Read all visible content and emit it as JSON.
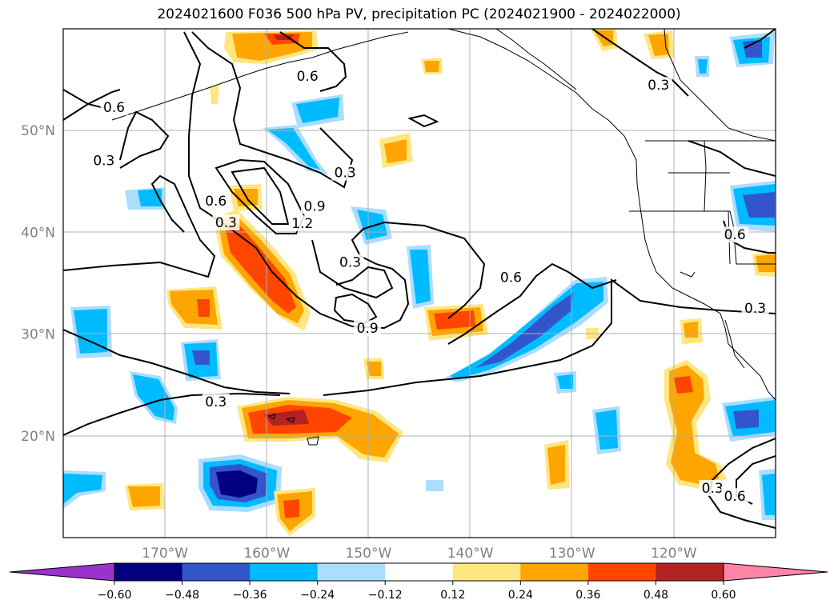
{
  "title": "2024021600 F036 500 hPa PV, precipitation PC (2024021900 - 2024022000)",
  "map": {
    "projection": "PlateCarree",
    "lon_range": [
      -180,
      -110
    ],
    "lat_range": [
      10,
      60
    ],
    "grid": true,
    "lon_ticks": [
      {
        "lon": -170,
        "label": "170°W"
      },
      {
        "lon": -160,
        "label": "160°W"
      },
      {
        "lon": -150,
        "label": "150°W"
      },
      {
        "lon": -140,
        "label": "140°W"
      },
      {
        "lon": -130,
        "label": "130°W"
      },
      {
        "lon": -120,
        "label": "120°W"
      }
    ],
    "lat_ticks": [
      {
        "lat": 20,
        "label": "20°N"
      },
      {
        "lat": 30,
        "label": "30°N"
      },
      {
        "lat": 40,
        "label": "40°N"
      },
      {
        "lat": 50,
        "label": "50°N"
      }
    ]
  },
  "pv_contour_labels": [
    {
      "text": "0.6",
      "lon": -175,
      "lat": 52.2
    },
    {
      "text": "0.3",
      "lon": -176,
      "lat": 47.0
    },
    {
      "text": "0.6",
      "lon": -156,
      "lat": 55.3
    },
    {
      "text": "0.6",
      "lon": -165,
      "lat": 43.0
    },
    {
      "text": "0.3",
      "lon": -164,
      "lat": 40.9
    },
    {
      "text": "1.2",
      "lon": -156.5,
      "lat": 40.8
    },
    {
      "text": "0.9",
      "lon": -155.3,
      "lat": 42.5
    },
    {
      "text": "0.3",
      "lon": -152.3,
      "lat": 45.8
    },
    {
      "text": "0.3",
      "lon": -151.8,
      "lat": 37.0
    },
    {
      "text": "0.9",
      "lon": -150.1,
      "lat": 30.5
    },
    {
      "text": "0.6",
      "lon": -136,
      "lat": 35.5
    },
    {
      "text": "0.3",
      "lon": -165,
      "lat": 23.3
    },
    {
      "text": "0.3",
      "lon": -121.5,
      "lat": 54.4
    },
    {
      "text": "0.6",
      "lon": -114,
      "lat": 39.7
    },
    {
      "text": "0.3",
      "lon": -112,
      "lat": 32.5
    },
    {
      "text": "0.3",
      "lon": -116.2,
      "lat": 14.8
    },
    {
      "text": "0.6",
      "lon": -114,
      "lat": 14.0
    }
  ],
  "colorbar": {
    "ticks": [
      "−0.60",
      "−0.48",
      "−0.36",
      "−0.24",
      "−0.12",
      "0.12",
      "0.24",
      "0.36",
      "0.48",
      "0.60"
    ],
    "colors": [
      "#9933cc",
      "#000080",
      "#3355cc",
      "#00bbff",
      "#aaddff",
      "#ffffff",
      "#ffe680",
      "#ffa500",
      "#ff4500",
      "#b22222",
      "#ff85a8"
    ]
  },
  "colors": {
    "pv_contour": "#000000",
    "coastline": "#000000",
    "grid": "#b0b0b0",
    "axis_label": "#808080"
  }
}
